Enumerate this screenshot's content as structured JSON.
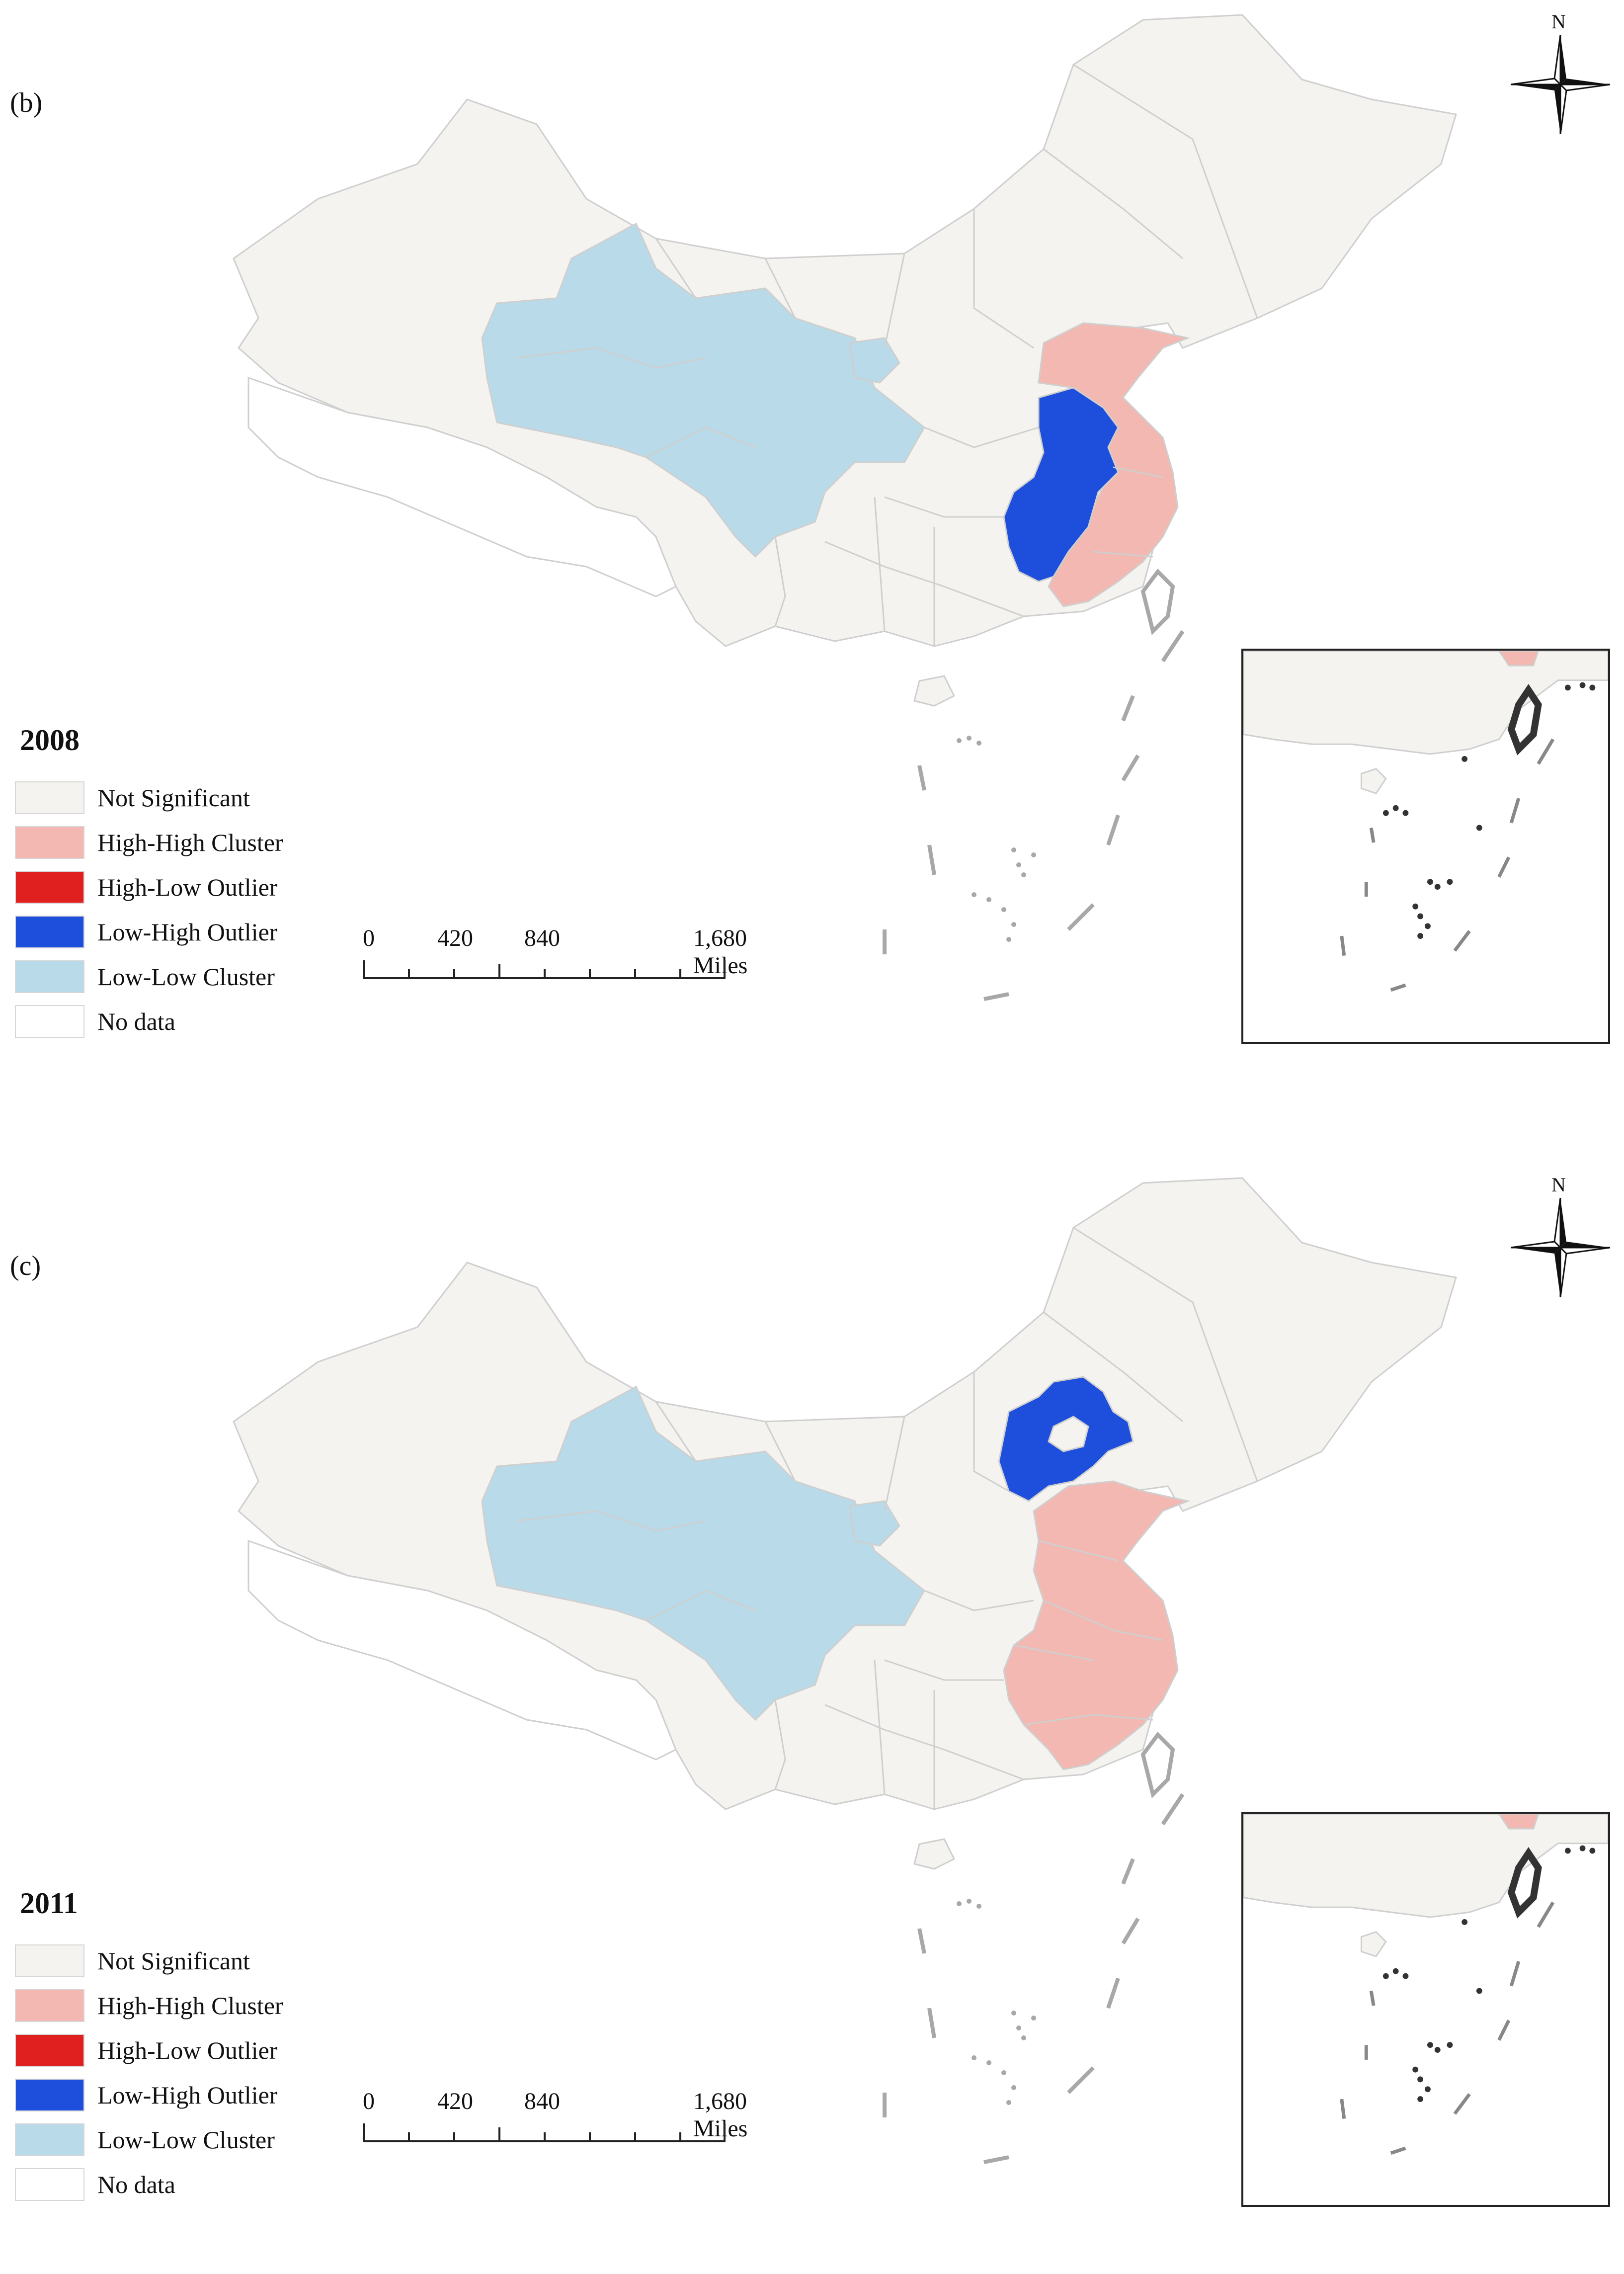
{
  "colors": {
    "not_significant": "#f4f3ef",
    "high_high": "#f2b8b1",
    "high_low": "#e0201e",
    "low_high": "#1e4fdc",
    "low_low": "#b9dae8",
    "no_data": "#ffffff",
    "border": "#cfcfcf",
    "islands": "#a8a8a8",
    "inset_islands": "#333333"
  },
  "legend": [
    {
      "key": "not_significant",
      "label": "Not Significant"
    },
    {
      "key": "high_high",
      "label": "High-High Cluster"
    },
    {
      "key": "high_low",
      "label": "High-Low Outlier"
    },
    {
      "key": "low_high",
      "label": "Low-High Outlier"
    },
    {
      "key": "low_low",
      "label": "Low-Low Cluster"
    },
    {
      "key": "no_data",
      "label": "No data"
    }
  ],
  "scale_bar": {
    "ticks": [
      "0",
      "420",
      "840",
      "1,680 Miles"
    ]
  },
  "north_arrow": {
    "label": "N",
    "icon": "compass-rose-icon"
  },
  "panels": [
    {
      "label": "(b)",
      "year": "2008"
    },
    {
      "label": "(c)",
      "year": "2011"
    }
  ]
}
